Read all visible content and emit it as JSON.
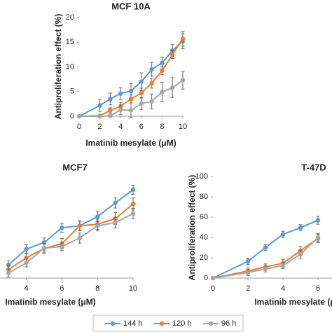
{
  "chart_data": [
    {
      "type": "line",
      "title": "MCF 10A",
      "x_label": "Imatinib mesylate (μM)",
      "y_label": "Antiproliferation effect (%)",
      "x": [
        0,
        2,
        3,
        4,
        5,
        6,
        7,
        8,
        9,
        10
      ],
      "xlim": [
        0,
        10
      ],
      "xticks": [
        0,
        2,
        4,
        6,
        8,
        10
      ],
      "ylim": [
        0,
        20
      ],
      "yticks": [
        0,
        5,
        10,
        15,
        20
      ],
      "series": [
        {
          "name": "144 h",
          "color": "#5b9bd5",
          "values": [
            0,
            2.2,
            3.5,
            4.6,
            5.1,
            7.0,
            9.5,
            10.8,
            13.3,
            15.2
          ],
          "errors": [
            0,
            1.2,
            1.2,
            1.2,
            1.5,
            1.8,
            1.4,
            1.2,
            1.2,
            1.5
          ]
        },
        {
          "name": "120 h",
          "color": "#ed7d31",
          "values": [
            0,
            0.1,
            1.2,
            2.0,
            3.5,
            4.7,
            6.7,
            9.2,
            12.5,
            15.7
          ],
          "errors": [
            0,
            0.3,
            0.5,
            0.8,
            0.8,
            1.0,
            1.0,
            0.8,
            0.8,
            1.5
          ]
        },
        {
          "name": "96 h",
          "color": "#a5a5a5",
          "values": [
            0,
            0,
            0.1,
            1.3,
            1.2,
            2.6,
            3.0,
            4.9,
            5.8,
            7.3
          ],
          "errors": [
            0,
            0.2,
            0.3,
            1.0,
            1.5,
            1.2,
            1.5,
            2.0,
            2.0,
            1.8
          ]
        }
      ]
    },
    {
      "type": "line",
      "title": "MCF7",
      "x_label": "Imatinib mesylate (μM)",
      "x": [
        3,
        4,
        5,
        6,
        7,
        8,
        9,
        10
      ],
      "xlim": [
        0,
        10
      ],
      "xticks": [
        4,
        6,
        8,
        10
      ],
      "ylim": [
        0,
        20
      ],
      "series": [
        {
          "name": "144 h",
          "color": "#5b9bd5",
          "values": [
            2.6,
            5.7,
            7.0,
            9.9,
            10.3,
            12.1,
            14.8,
            17.4
          ],
          "errors": [
            0.8,
            0.9,
            0.9,
            0.9,
            0.9,
            1.0,
            1.0,
            0.9
          ]
        },
        {
          "name": "120 h",
          "color": "#ed7d31",
          "values": [
            1.7,
            4.0,
            5.8,
            6.8,
            10.3,
            10.6,
            11.7,
            14.6
          ],
          "errors": [
            0.8,
            0.8,
            1.0,
            1.0,
            1.0,
            1.0,
            1.2,
            1.2
          ]
        },
        {
          "name": "96 h",
          "color": "#a5a5a5",
          "values": [
            1.0,
            3.0,
            5.9,
            6.2,
            7.9,
            10.3,
            10.9,
            12.7
          ],
          "errors": [
            0.8,
            0.8,
            0.8,
            0.8,
            1.0,
            1.0,
            1.0,
            1.0
          ]
        }
      ]
    },
    {
      "type": "line",
      "title": "T-47D",
      "x_label": "Imatinib mesylate (μM)",
      "y_label": "Antiproliferation effect (%)",
      "x": [
        0,
        2,
        3,
        4,
        5,
        6
      ],
      "xlim": [
        0,
        10
      ],
      "xticks": [
        0,
        2,
        4,
        6
      ],
      "ylim": [
        0,
        100
      ],
      "yticks": [
        0,
        20,
        40,
        60,
        80,
        100
      ],
      "series": [
        {
          "name": "144 h",
          "color": "#5b9bd5",
          "values": [
            0,
            16.5,
            30,
            43,
            49.6,
            57
          ],
          "errors": [
            0,
            3,
            3,
            3,
            3,
            4
          ]
        },
        {
          "name": "120 h",
          "color": "#ed7d31",
          "values": [
            0,
            7,
            11,
            14.5,
            27,
            39
          ],
          "errors": [
            0,
            3,
            3,
            4,
            4,
            4
          ]
        },
        {
          "name": "96 h",
          "color": "#a5a5a5",
          "values": [
            0,
            5.5,
            9,
            12.4,
            23.4,
            40
          ],
          "errors": [
            0,
            3,
            3,
            3,
            4,
            4
          ]
        }
      ]
    }
  ]
}
